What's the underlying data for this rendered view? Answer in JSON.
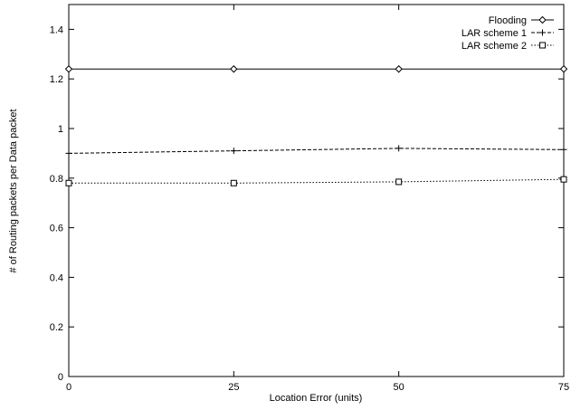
{
  "chart_data": {
    "type": "line",
    "title": "",
    "xlabel": "Location Error (units)",
    "ylabel": "# of Routing packets per Data packet",
    "x": [
      0,
      25,
      50,
      75
    ],
    "xticks": [
      "0",
      "25",
      "50",
      "75"
    ],
    "yticks": [
      "0",
      "0.2",
      "0.4",
      "0.6",
      "0.8",
      "1",
      "1.2",
      "1.4"
    ],
    "xlim": [
      0,
      75
    ],
    "ylim": [
      0,
      1.5
    ],
    "grid": false,
    "legend_position": "top-right",
    "series": [
      {
        "name": "Flooding",
        "values": [
          1.24,
          1.24,
          1.24,
          1.24
        ],
        "marker": "diamond",
        "dash": "solid"
      },
      {
        "name": "LAR scheme 1",
        "values": [
          0.9,
          0.91,
          0.92,
          0.915
        ],
        "marker": "plus",
        "dash": "dashed"
      },
      {
        "name": "LAR scheme 2",
        "values": [
          0.78,
          0.78,
          0.785,
          0.795
        ],
        "marker": "square",
        "dash": "dotted"
      }
    ]
  }
}
